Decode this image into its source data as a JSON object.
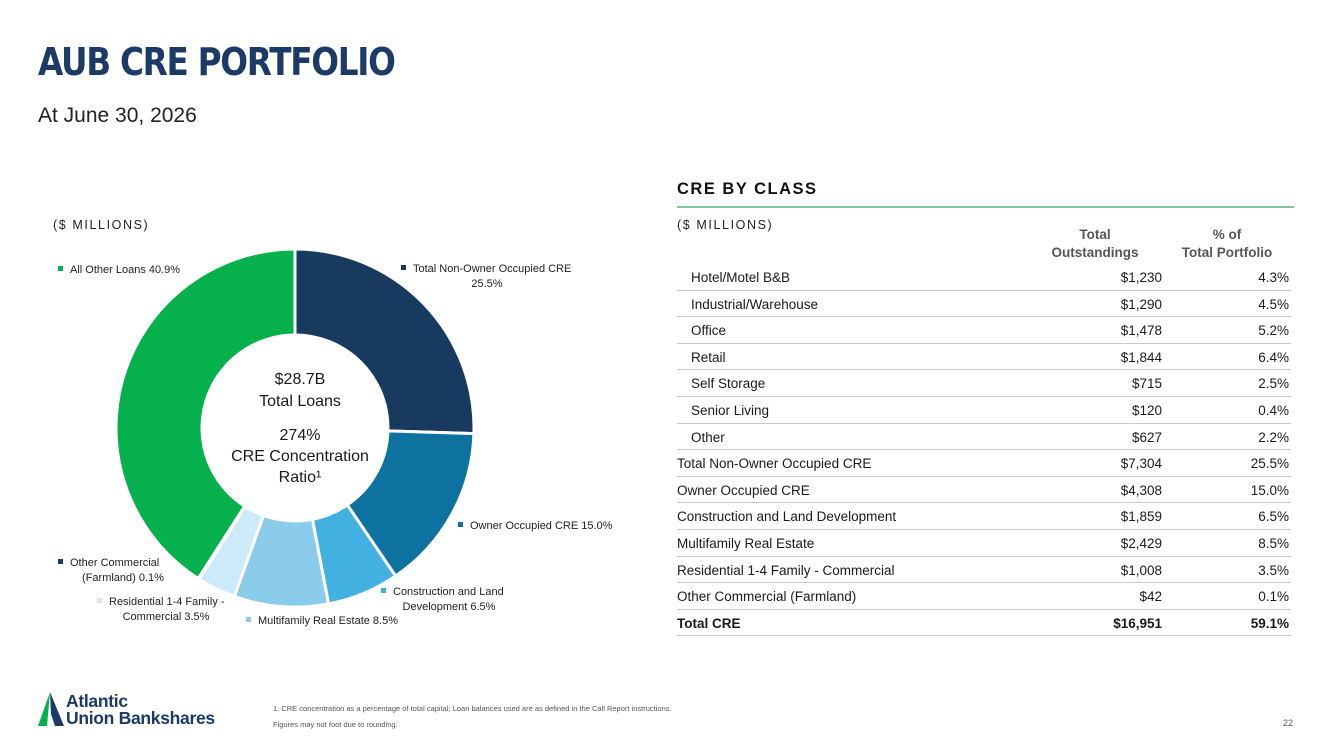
{
  "header": {
    "title": "AUB CRE PORTFOLIO",
    "subtitle": "At June 30, 2026"
  },
  "chart_data": {
    "type": "pie",
    "units_label": "($ MILLIONS)",
    "center_text": [
      "$28.7B",
      "Total Loans",
      "274%",
      "CRE Concentration",
      "Ratio¹"
    ],
    "slices": [
      {
        "name": "Total Non-Owner Occupied CRE",
        "label_lines": [
          "Total Non-Owner Occupied CRE",
          "25.5%"
        ],
        "value": 25.5,
        "color": "#183a5f"
      },
      {
        "name": "Owner Occupied CRE",
        "label_lines": [
          "Owner Occupied CRE 15.0%"
        ],
        "value": 15.0,
        "color": "#0d72a0"
      },
      {
        "name": "Construction and Land Development",
        "label_lines": [
          "Construction and Land",
          "Development 6.5%"
        ],
        "value": 6.5,
        "color": "#43b0e2"
      },
      {
        "name": "Multifamily Real Estate",
        "label_lines": [
          "Multifamily Real Estate 8.5%"
        ],
        "value": 8.5,
        "color": "#8bcbec"
      },
      {
        "name": "Residential 1-4 Family - Commercial",
        "label_lines": [
          "Residential 1-4 Family -",
          "Commercial 3.5%"
        ],
        "value": 3.5,
        "color": "#cdeafa"
      },
      {
        "name": "Other Commercial (Farmland)",
        "label_lines": [
          "Other Commercial",
          "(Farmland) 0.1%"
        ],
        "value": 0.1,
        "color": "#1b3a66"
      },
      {
        "name": "All Other Loans",
        "label_lines": [
          "All Other Loans 40.9%"
        ],
        "value": 40.9,
        "color": "#05b04d"
      }
    ]
  },
  "table": {
    "title": "CRE BY CLASS",
    "units_label": "($ MILLIONS)",
    "col1_header": [
      "Total",
      "Outstandings"
    ],
    "col2_header": [
      "% of",
      "Total Portfolio"
    ],
    "rows": [
      {
        "name": "Hotel/Motel B&B",
        "amount": "$1,230",
        "pct": "4.3%",
        "sub": true
      },
      {
        "name": "Industrial/Warehouse",
        "amount": "$1,290",
        "pct": "4.5%",
        "sub": true
      },
      {
        "name": "Office",
        "amount": "$1,478",
        "pct": "5.2%",
        "sub": true
      },
      {
        "name": "Retail",
        "amount": "$1,844",
        "pct": "6.4%",
        "sub": true
      },
      {
        "name": "Self Storage",
        "amount": "$715",
        "pct": "2.5%",
        "sub": true
      },
      {
        "name": "Senior Living",
        "amount": "$120",
        "pct": "0.4%",
        "sub": true
      },
      {
        "name": "Other",
        "amount": "$627",
        "pct": "2.2%",
        "sub": true
      },
      {
        "name": "Total Non-Owner Occupied CRE",
        "amount": "$7,304",
        "pct": "25.5%"
      },
      {
        "name": "Owner Occupied CRE",
        "amount": "$4,308",
        "pct": "15.0%"
      },
      {
        "name": "Construction and Land Development",
        "amount": "$1,859",
        "pct": "6.5%"
      },
      {
        "name": "Multifamily Real Estate",
        "amount": "$2,429",
        "pct": "8.5%"
      },
      {
        "name": "Residential 1-4 Family - Commercial",
        "amount": "$1,008",
        "pct": "3.5%"
      },
      {
        "name": "Other Commercial (Farmland)",
        "amount": "$42",
        "pct": "0.1%"
      },
      {
        "name": "Total CRE",
        "amount": "$16,951",
        "pct": "59.1%",
        "total": true
      }
    ]
  },
  "footer": {
    "logo_line1": "Atlantic",
    "logo_line2": "Union Bankshares",
    "footnote1": "1. CRE concentration as a percentage of total capital; Loan balances used are as defined in the Call Report instructions.",
    "footnote2": "Figures may not foot due to rounding.",
    "page_number": "22"
  }
}
